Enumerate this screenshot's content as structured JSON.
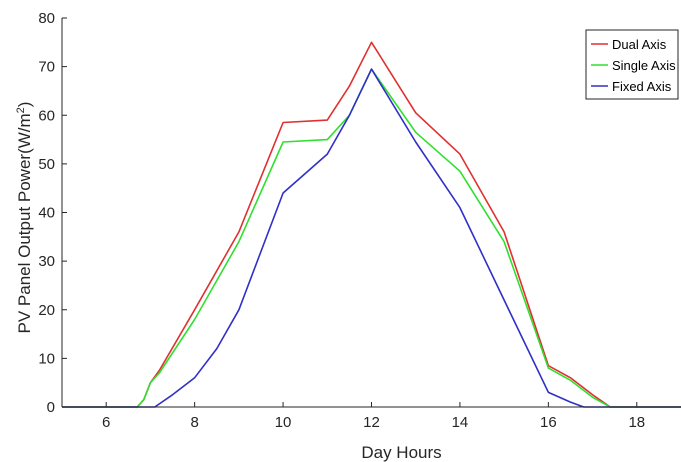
{
  "chart_data": {
    "type": "line",
    "title": "",
    "xlabel": "Day Hours",
    "ylabel_main": "PV Panel Output Power(W/m",
    "ylabel_sup": "2",
    "ylabel_close": ")",
    "xlim": [
      5,
      19
    ],
    "ylim": [
      0,
      80
    ],
    "xticks": [
      6,
      8,
      10,
      12,
      14,
      16,
      18
    ],
    "yticks": [
      0,
      10,
      20,
      30,
      40,
      50,
      60,
      70,
      80
    ],
    "grid": false,
    "legend_position": "top-right",
    "series": [
      {
        "name": "Dual Axis",
        "color": "#e03030",
        "x": [
          5,
          6.7,
          6.85,
          7,
          7.2,
          8,
          9,
          10,
          11,
          11.5,
          12,
          13,
          14,
          15,
          16,
          16.5,
          17,
          17.4,
          18,
          19
        ],
        "y": [
          0,
          0,
          1.5,
          5,
          7.5,
          20,
          36,
          58.5,
          59,
          66,
          75,
          60.5,
          52,
          36,
          8.5,
          6,
          2.5,
          0,
          0,
          0
        ]
      },
      {
        "name": "Single Axis",
        "color": "#30e030",
        "x": [
          5,
          6.7,
          6.85,
          7,
          7.2,
          8,
          9,
          10,
          11,
          11.5,
          12,
          13,
          14,
          15,
          16,
          16.5,
          17,
          17.4,
          18,
          19
        ],
        "y": [
          0,
          0,
          1.5,
          5,
          7,
          18,
          34,
          54.5,
          55,
          60,
          69.5,
          56.5,
          48.5,
          34,
          8,
          5.5,
          2,
          0,
          0,
          0
        ]
      },
      {
        "name": "Fixed Axis",
        "color": "#3030c8",
        "x": [
          5,
          6.7,
          7.1,
          7.5,
          8,
          8.5,
          9,
          10,
          11,
          11.5,
          12,
          13,
          14,
          15,
          16,
          16.5,
          16.8,
          17,
          18,
          19
        ],
        "y": [
          0,
          0,
          0,
          2.5,
          6,
          12,
          20,
          44,
          52,
          60,
          69.5,
          54.5,
          41,
          22,
          3,
          1,
          0,
          0,
          0,
          0
        ]
      }
    ]
  }
}
